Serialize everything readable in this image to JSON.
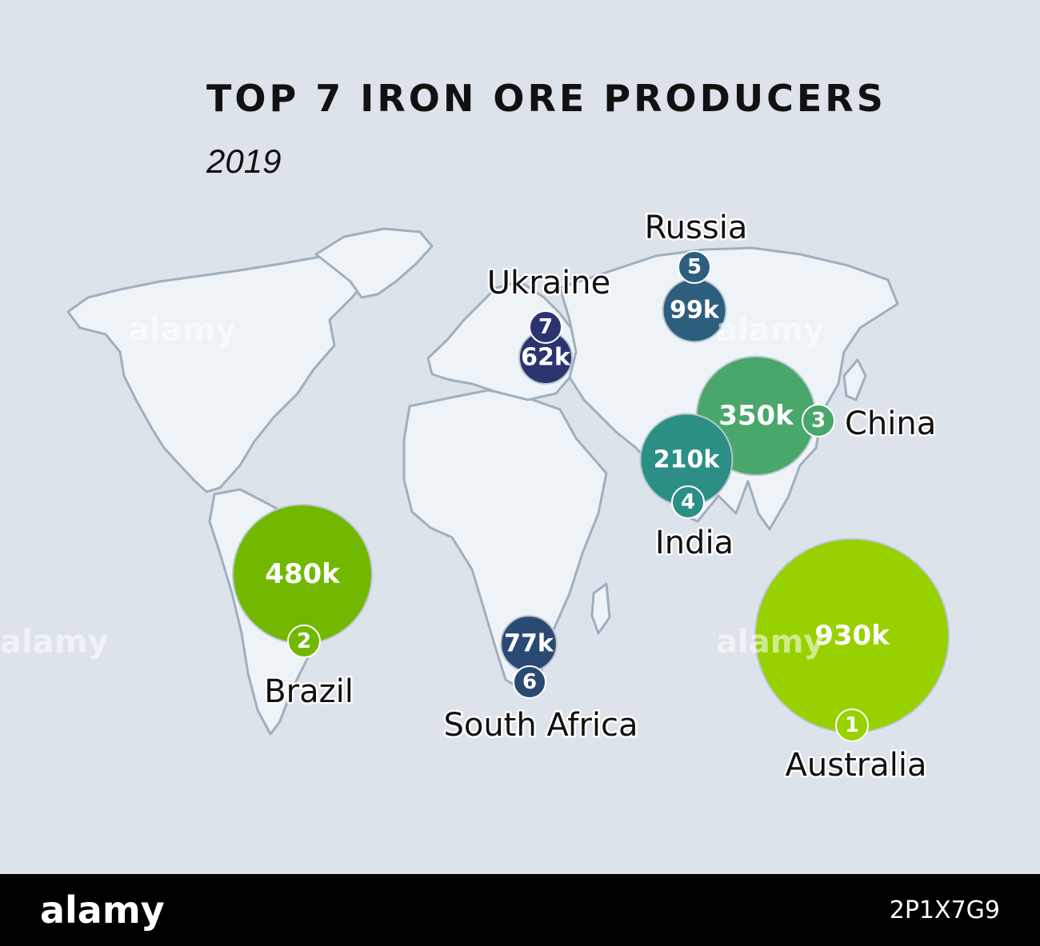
{
  "title": "TOP 7 IRON ORE PRODUCERS",
  "subtitle": "2019",
  "colors": {
    "background": "#dde3ea",
    "land": "#eef3f8",
    "border": "#9fb0bd"
  },
  "producers": [
    {
      "rank": "1",
      "country": "Australia",
      "value_label": "930k",
      "value": 930,
      "color": "#97d100"
    },
    {
      "rank": "2",
      "country": "Brazil",
      "value_label": "480k",
      "value": 480,
      "color": "#72b800"
    },
    {
      "rank": "3",
      "country": "China",
      "value_label": "350k",
      "value": 350,
      "color": "#4aa76b"
    },
    {
      "rank": "4",
      "country": "India",
      "value_label": "210k",
      "value": 210,
      "color": "#2b8f86"
    },
    {
      "rank": "5",
      "country": "Russia",
      "value_label": "99k",
      "value": 99,
      "color": "#2d5e7e"
    },
    {
      "rank": "6",
      "country": "South Africa",
      "value_label": "77k",
      "value": 77,
      "color": "#2b4a73"
    },
    {
      "rank": "7",
      "country": "Ukraine",
      "value_label": "62k",
      "value": 62,
      "color": "#2c3470"
    }
  ],
  "watermark": {
    "footer_brand": "alamy",
    "image_id": "2P1X7G9"
  }
}
